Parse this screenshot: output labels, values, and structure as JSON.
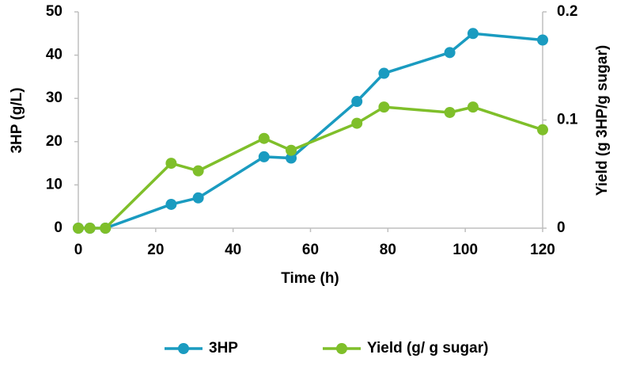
{
  "chart_data": {
    "type": "line",
    "xlabel": "Time (h)",
    "ylabel": "3HP (g/L)",
    "y2label": "Yield (g 3HP/g sugar)",
    "x": [
      0,
      3,
      7,
      24,
      31,
      48,
      55,
      72,
      79,
      96,
      102,
      120
    ],
    "series": [
      {
        "name": "3HP",
        "color": "#1a9bc0",
        "values": [
          0,
          0,
          0,
          5.5,
          7,
          16.5,
          16.2,
          29.3,
          35.8,
          40.6,
          45,
          43.5
        ]
      },
      {
        "name": "Yield (g/ g sugar)",
        "color": "#7fbf2a",
        "axis": "y2",
        "values": [
          0,
          0,
          0,
          0.06,
          0.053,
          0.083,
          0.072,
          0.097,
          0.112,
          0.107,
          0.112,
          0.091
        ]
      }
    ],
    "xlim": [
      0,
      120
    ],
    "xticks": [
      0,
      20,
      40,
      60,
      80,
      100,
      120
    ],
    "ylim": [
      0,
      50
    ],
    "yticks": [
      0,
      10,
      20,
      30,
      40,
      50
    ],
    "y2lim": [
      0,
      0.2
    ],
    "y2ticks": [
      0,
      0.1,
      0.2
    ],
    "legend": "bottom",
    "grid": false
  }
}
